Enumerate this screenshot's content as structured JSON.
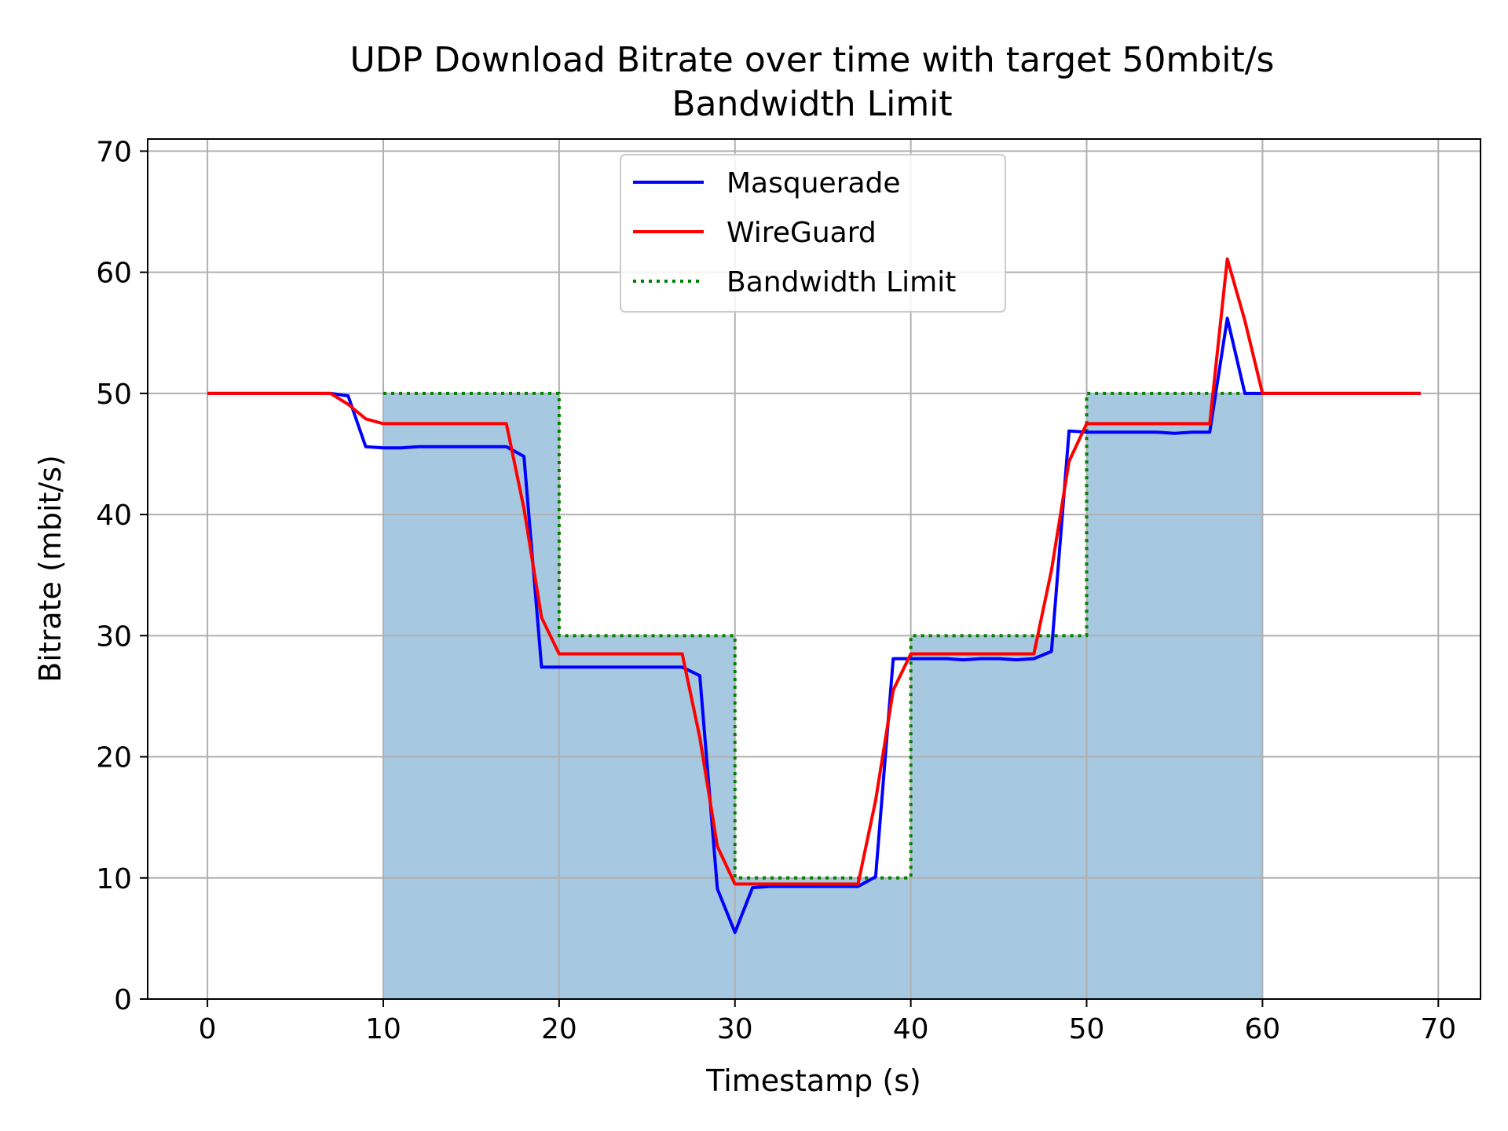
{
  "chart_data": {
    "type": "line",
    "title": [
      "UDP Download Bitrate over time with target 50mbit/s",
      "Bandwidth Limit"
    ],
    "xlabel": "Timestamp (s)",
    "ylabel": "Bitrate (mbit/s)",
    "xlim": [
      -3.4,
      72.4
    ],
    "ylim": [
      0,
      71
    ],
    "xticks": [
      0,
      10,
      20,
      30,
      40,
      50,
      60,
      70
    ],
    "yticks": [
      0,
      10,
      20,
      30,
      40,
      50,
      60,
      70
    ],
    "grid": true,
    "legend_position": "top-center",
    "colors": {
      "masquerade": "#0000ff",
      "wireguard": "#ff0000",
      "limit": "#008000",
      "fill": "#a6c8e0",
      "grid": "#b0b0b0"
    },
    "shaded_region": {
      "x": [
        10,
        20,
        20,
        30,
        30,
        40,
        40,
        50,
        50,
        60
      ],
      "y": [
        50,
        50,
        30,
        30,
        10,
        10,
        30,
        30,
        50,
        50
      ]
    },
    "series": [
      {
        "name": "Masquerade",
        "style": "solid",
        "x": [
          0,
          1,
          2,
          3,
          4,
          5,
          6,
          7,
          8,
          9,
          10,
          11,
          12,
          13,
          14,
          15,
          16,
          17,
          18,
          19,
          20,
          21,
          22,
          23,
          24,
          25,
          26,
          27,
          28,
          29,
          30,
          31,
          32,
          33,
          34,
          35,
          36,
          37,
          38,
          39,
          40,
          41,
          42,
          43,
          44,
          45,
          46,
          47,
          48,
          49,
          50,
          51,
          52,
          53,
          54,
          55,
          56,
          57,
          58,
          59,
          60,
          61,
          62,
          63,
          64,
          65,
          66,
          67,
          68,
          69
        ],
        "y": [
          50,
          50,
          50,
          50,
          50,
          50,
          50,
          50,
          49.8,
          45.6,
          45.5,
          45.5,
          45.6,
          45.6,
          45.6,
          45.6,
          45.6,
          45.6,
          44.8,
          27.4,
          27.4,
          27.4,
          27.4,
          27.4,
          27.4,
          27.4,
          27.4,
          27.4,
          26.7,
          9.1,
          5.5,
          9.2,
          9.3,
          9.3,
          9.3,
          9.3,
          9.3,
          9.3,
          10.1,
          28.1,
          28.1,
          28.1,
          28.1,
          28.0,
          28.1,
          28.1,
          28.0,
          28.1,
          28.7,
          46.9,
          46.8,
          46.8,
          46.8,
          46.8,
          46.8,
          46.7,
          46.8,
          46.8,
          56.2,
          50,
          50,
          50,
          50,
          50,
          50,
          50,
          50,
          50,
          50,
          50
        ]
      },
      {
        "name": "WireGuard",
        "style": "solid",
        "x": [
          0,
          1,
          2,
          3,
          4,
          5,
          6,
          7,
          8,
          9,
          10,
          11,
          12,
          13,
          14,
          15,
          16,
          17,
          18,
          19,
          20,
          21,
          22,
          23,
          24,
          25,
          26,
          27,
          28,
          29,
          30,
          31,
          32,
          33,
          34,
          35,
          36,
          37,
          38,
          39,
          40,
          41,
          42,
          43,
          44,
          45,
          46,
          47,
          48,
          49,
          50,
          51,
          52,
          53,
          54,
          55,
          56,
          57,
          58,
          59,
          60,
          61,
          62,
          63,
          64,
          65,
          66,
          67,
          68,
          69
        ],
        "y": [
          50,
          50,
          50,
          50,
          50,
          50,
          50,
          50,
          49.1,
          47.9,
          47.5,
          47.5,
          47.5,
          47.5,
          47.5,
          47.5,
          47.5,
          47.5,
          40.5,
          31.5,
          28.5,
          28.5,
          28.5,
          28.5,
          28.5,
          28.5,
          28.5,
          28.5,
          21.6,
          12.6,
          9.5,
          9.5,
          9.5,
          9.5,
          9.5,
          9.5,
          9.5,
          9.5,
          16.4,
          25.5,
          28.5,
          28.5,
          28.5,
          28.5,
          28.5,
          28.5,
          28.5,
          28.5,
          35.4,
          44.4,
          47.5,
          47.5,
          47.5,
          47.5,
          47.5,
          47.5,
          47.5,
          47.5,
          61.1,
          56.0,
          50,
          50,
          50,
          50,
          50,
          50,
          50,
          50,
          50,
          50
        ]
      },
      {
        "name": "Bandwidth Limit",
        "style": "dotted",
        "x": [
          10,
          20,
          20,
          30,
          30,
          40,
          40,
          50,
          50,
          60
        ],
        "y": [
          50,
          50,
          30,
          30,
          10,
          10,
          30,
          30,
          50,
          50
        ]
      }
    ]
  }
}
